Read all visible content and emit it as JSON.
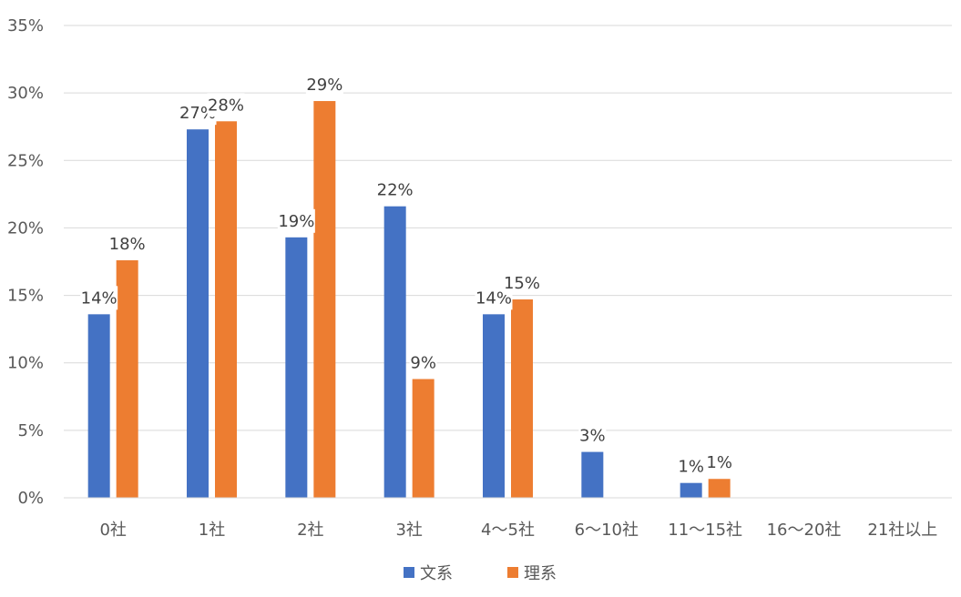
{
  "chart_data": {
    "type": "bar",
    "categories": [
      "0社",
      "1社",
      "2社",
      "3社",
      "4〜5社",
      "6〜10社",
      "11〜15社",
      "16〜20社",
      "21社以上"
    ],
    "series": [
      {
        "name": "文系",
        "color": "#4472C4",
        "values": [
          13.6,
          27.3,
          19.3,
          21.6,
          13.6,
          3.4,
          1.1,
          null,
          null
        ],
        "labels": [
          "14%",
          "27%",
          "19%",
          "22%",
          "14%",
          "3%",
          "1%",
          "",
          ""
        ]
      },
      {
        "name": "理系",
        "color": "#ED7D31",
        "values": [
          17.6,
          27.9,
          29.4,
          8.8,
          14.7,
          null,
          1.4,
          null,
          null
        ],
        "labels": [
          "18%",
          "28%",
          "29%",
          "9%",
          "15%",
          "",
          "1%",
          "",
          ""
        ]
      }
    ],
    "y_ticks": [
      "0%",
      "5%",
      "10%",
      "15%",
      "20%",
      "25%",
      "30%",
      "35%"
    ],
    "ylim": [
      0,
      35
    ],
    "grid": true,
    "legend_position": "bottom"
  }
}
